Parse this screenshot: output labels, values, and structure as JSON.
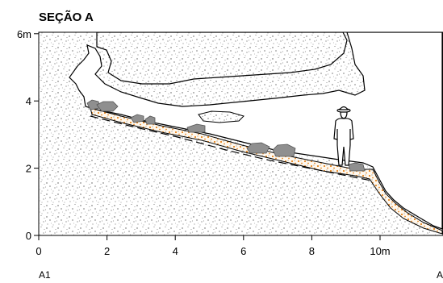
{
  "title": "SEÇÃO A",
  "vertical_axis": {
    "ticks": [
      {
        "value": 0,
        "label": "0"
      },
      {
        "value": 2,
        "label": "2"
      },
      {
        "value": 4,
        "label": "4"
      },
      {
        "value": 6,
        "label": "6m"
      }
    ]
  },
  "horizontal_axis": {
    "ticks": [
      {
        "value": 0,
        "label": "0"
      },
      {
        "value": 2,
        "label": "2"
      },
      {
        "value": 4,
        "label": "4"
      },
      {
        "value": 6,
        "label": "6"
      },
      {
        "value": 8,
        "label": "8"
      },
      {
        "value": 10,
        "label": "10m"
      },
      {
        "value": 12,
        "label": ""
      }
    ]
  },
  "endpoints": {
    "left": "A1",
    "right": "A"
  },
  "colors": {
    "rock": "#e6e6e6",
    "sediment": "#f5f5f5",
    "orange_deposit": "#e8861f",
    "boulder": "#8f8f8f"
  },
  "icons": [
    "human-figure-scale-icon",
    "boulder-icon"
  ]
}
